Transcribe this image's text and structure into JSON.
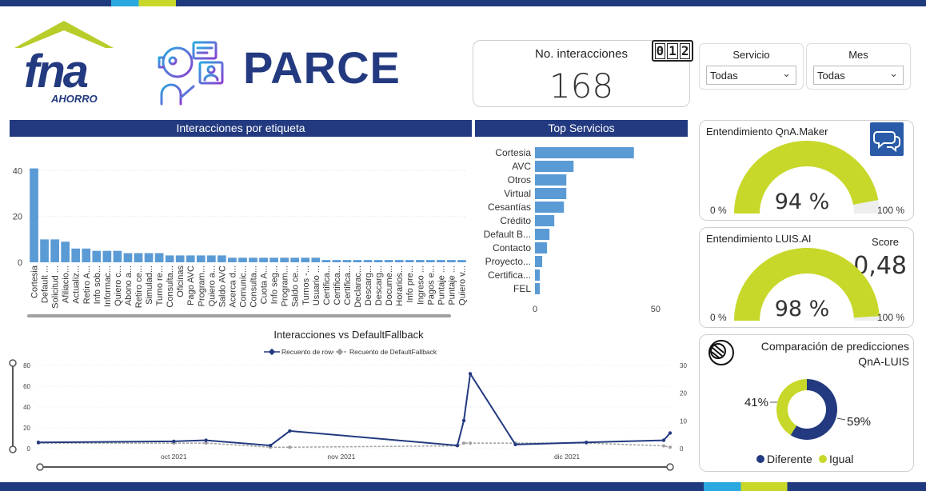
{
  "brand": {
    "logo_text": "fna",
    "logo_sub": "AHORRO",
    "title": "PARCE"
  },
  "kpi": {
    "label": "No. interacciones",
    "value": "168",
    "counter_digits": [
      "0",
      "1",
      "2"
    ]
  },
  "filters": [
    {
      "label": "Servicio",
      "value": "Todas"
    },
    {
      "label": "Mes",
      "value": "Todas"
    }
  ],
  "colors": {
    "navy": "#233a80",
    "bar": "#5b9bd5",
    "gauge": "#c8d82a",
    "gauge_bg": "#eeeeee",
    "line1": "#233a80",
    "line2": "#9e9e9e"
  },
  "sections": {
    "etiquetas": "Interacciones por etiqueta",
    "servicios": "Top Servicios",
    "line": "Interacciones vs DefaultFallback"
  },
  "gauges": [
    {
      "title": "Entendimiento QnA.Maker",
      "value_label": "94 %",
      "fraction": 0.94,
      "min_label": "0 %",
      "max_label": "100 %",
      "icon": "chat-bubbles-icon"
    },
    {
      "title": "Entendimiento LUIS.AI",
      "value_label": "98 %",
      "fraction": 0.98,
      "min_label": "0 %",
      "max_label": "100 %",
      "score_label": "Score",
      "score_value": "0,48"
    }
  ],
  "donut": {
    "title_line1": "Comparación de predicciones",
    "title_line2": "QnA-LUIS",
    "slices": [
      {
        "name": "Diferente",
        "percent_label": "59%",
        "value": 59,
        "color": "#233a80"
      },
      {
        "name": "Igual",
        "percent_label": "41%",
        "value": 41,
        "color": "#c8d82a"
      }
    ]
  },
  "chart_data": [
    {
      "type": "bar",
      "title": "Interacciones por etiqueta",
      "categories": [
        "Cortesia",
        "Default ...",
        "Solicitud ...",
        "Afiliacio...",
        "Actualiz...",
        "Retiro A...",
        "Info sob...",
        "Informac...",
        "Quiero c...",
        "Abono a...",
        "Retiro ce...",
        "Simulad...",
        "Turno re...",
        "Consulta...",
        "Oficinas",
        "Pago AVC",
        "Program...",
        "Quiero a...",
        "Saldo AVC",
        "Acerca d...",
        "Comunic...",
        "Consulta...",
        "Cuota A...",
        "Info seg...",
        "Program...",
        "Saldo ce...",
        "Turnos -...",
        "Usuario ...",
        "Certifica...",
        "Certifica...",
        "Certifica...",
        "Declarac...",
        "Descarg...",
        "Descarg...",
        "Docume...",
        "Horarios...",
        "Info pre...",
        "Ingreso ...",
        "Pagos e...",
        "Puntaje ...",
        "Puntaje ...",
        "Quiero v..."
      ],
      "values": [
        41,
        10,
        10,
        9,
        6,
        6,
        5,
        5,
        5,
        4,
        4,
        4,
        4,
        3,
        3,
        3,
        3,
        3,
        3,
        2,
        2,
        2,
        2,
        2,
        2,
        2,
        2,
        2,
        1,
        1,
        1,
        1,
        1,
        1,
        1,
        1,
        1,
        1,
        1,
        1,
        1,
        1
      ],
      "yticks": [
        0,
        20,
        40
      ],
      "ylim": [
        0,
        44
      ]
    },
    {
      "type": "bar",
      "orientation": "horizontal",
      "title": "Top Servicios",
      "categories": [
        "Cortesia",
        "AVC",
        "Otros",
        "Virtual",
        "Cesantías",
        "Crédito",
        "Default B...",
        "Contacto",
        "Proyecto...",
        "Certifica...",
        "FEL"
      ],
      "values": [
        41,
        16,
        13,
        13,
        12,
        8,
        6,
        5,
        3,
        2,
        2
      ],
      "xticks": [
        0,
        50
      ],
      "xlim": [
        0,
        55
      ]
    },
    {
      "type": "line",
      "title": "Interacciones vs DefaultFallback",
      "series": [
        {
          "name": "Recuento de row",
          "axis": "left",
          "x": [
            "2021-09-24",
            "2021-10-15",
            "2021-10-20",
            "2021-10-30",
            "2021-11-02",
            "2021-11-28",
            "2021-11-29",
            "2021-11-30",
            "2021-12-07",
            "2021-12-18",
            "2021-12-30",
            "2021-12-31"
          ],
          "values": [
            6,
            7,
            8,
            3,
            17,
            3,
            27,
            72,
            4,
            6,
            8,
            15
          ]
        },
        {
          "name": "Recuento de DefaultFallback",
          "axis": "right",
          "x": [
            "2021-09-24",
            "2021-10-15",
            "2021-10-20",
            "2021-10-30",
            "2021-11-02",
            "2021-11-28",
            "2021-11-29",
            "2021-11-30",
            "2021-12-07",
            "2021-12-18",
            "2021-12-30",
            "2021-12-31"
          ],
          "values": [
            2,
            2,
            2,
            0.5,
            0.5,
            1,
            2,
            2,
            2,
            2,
            1,
            0.5
          ]
        }
      ],
      "xticks": [
        "oct 2021",
        "nov 2021",
        "dic 2021"
      ],
      "yticks_left": [
        0,
        20,
        40,
        60,
        80
      ],
      "yticks_right": [
        0,
        10,
        20,
        30
      ],
      "ylim_left": [
        0,
        80
      ],
      "ylim_right": [
        0,
        30
      ],
      "legend": "top-center"
    }
  ]
}
